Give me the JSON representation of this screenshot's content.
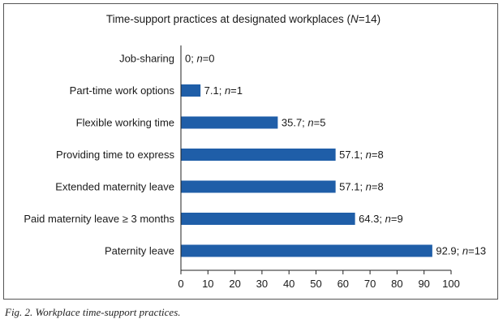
{
  "chart_data": {
    "type": "bar",
    "orientation": "horizontal",
    "title_prefix": "Time-support practices at designated workplaces (",
    "title_n": "N",
    "title_suffix": "=14)",
    "categories": [
      "Job-sharing",
      "Part-time work options",
      "Flexible working time",
      "Providing time to express",
      "Extended maternity leave",
      "Paid maternity leave ≥ 3 months",
      "Paternity leave"
    ],
    "values": [
      0,
      7.1,
      35.7,
      57.1,
      57.1,
      64.3,
      92.9
    ],
    "counts": [
      0,
      1,
      5,
      8,
      8,
      9,
      13
    ],
    "n_label": "n",
    "xlim": [
      0,
      100
    ],
    "xticks": [
      0,
      10,
      20,
      30,
      40,
      50,
      60,
      70,
      80,
      90,
      100
    ],
    "bar_color": "#1f5ea8",
    "grid": false
  },
  "caption": "Fig. 2. Workplace time-support practices."
}
